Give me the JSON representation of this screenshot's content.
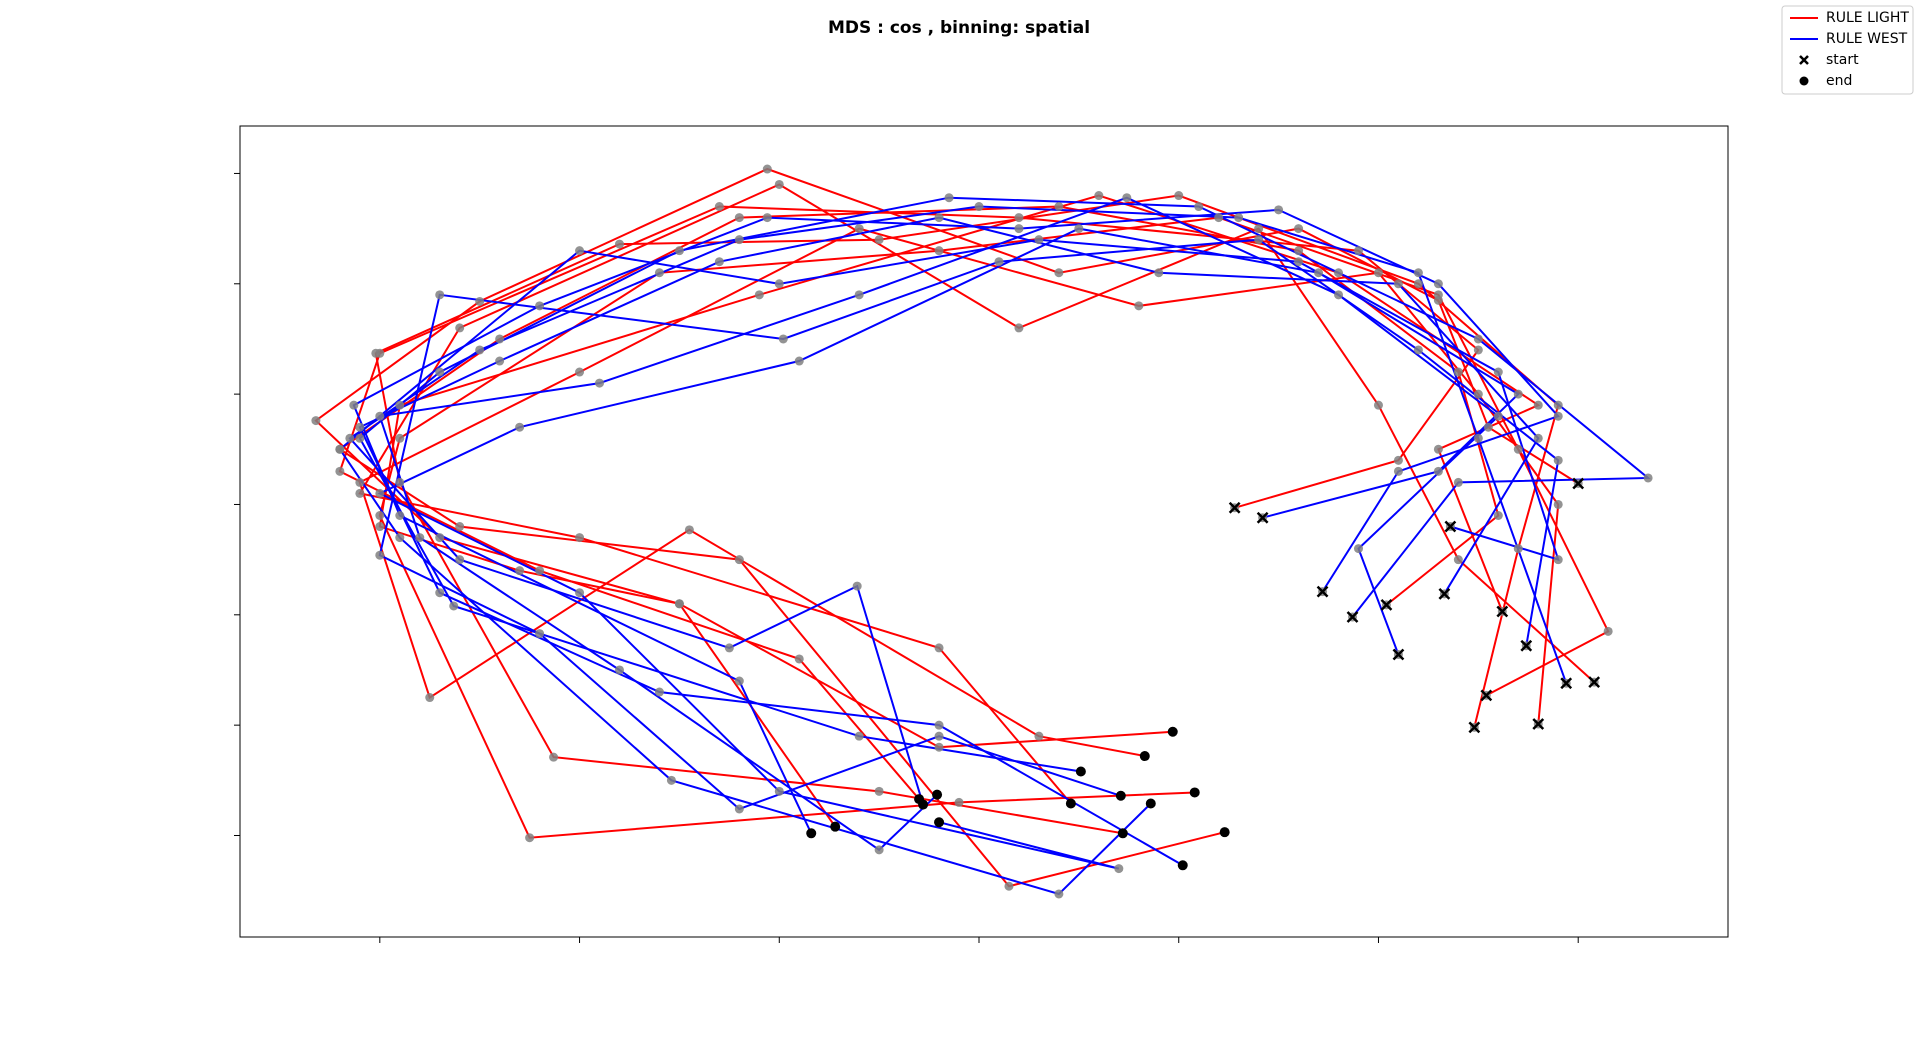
{
  "chart_data": {
    "type": "trajectory",
    "title": "MDS : cos , binning: spatial",
    "xlim": [
      -3.7,
      3.75
    ],
    "ylim": [
      -3.92,
      3.43
    ],
    "xticks": [
      -3,
      -2,
      -1,
      0,
      1,
      2,
      3
    ],
    "yticks": [
      -3,
      -2,
      -1,
      0,
      1,
      2,
      3
    ],
    "legend": "upper right",
    "point_color": "#808080",
    "series": [
      {
        "name": "RULE LIGHT",
        "color": "#ff0000",
        "trajectories": [
          {
            "x": [
              3.0,
              2.55,
              2.3,
              1.6,
              0.4,
              -1.06,
              -2.5,
              -3.32,
              -2.7,
              -1.5,
              -0.2,
              0.97
            ],
            "y": [
              0.19,
              0.7,
              1.85,
              2.5,
              2.1,
              3.04,
              1.84,
              0.76,
              -0.3,
              -0.9,
              -2.2,
              -2.06
            ]
          },
          {
            "x": [
              1.28,
              2.1,
              2.5,
              1.9,
              0.2,
              -1.3,
              -3.0,
              -3.2,
              -2.2,
              -0.9,
              -0.3
            ],
            "y": [
              -0.03,
              0.4,
              1.4,
              2.3,
              2.6,
              2.7,
              1.37,
              0.3,
              -0.6,
              -1.4,
              -2.67
            ]
          },
          {
            "x": [
              2.48,
              2.7,
              2.9,
              2.2,
              1.0,
              -0.5,
              -1.8,
              -3.02,
              -2.9,
              -2.13,
              -0.5,
              0.72
            ],
            "y": [
              -2.02,
              -0.4,
              0.9,
              2.0,
              2.8,
              2.4,
              2.36,
              1.37,
              0.2,
              -2.29,
              -2.6,
              -2.98
            ]
          },
          {
            "x": [
              3.08,
              2.4,
              2.0,
              1.4,
              0.2,
              -1.0,
              -2.6,
              -3.1,
              -2.0,
              -0.2,
              0.46
            ],
            "y": [
              -1.61,
              -0.5,
              0.9,
              2.5,
              1.6,
              2.9,
              1.6,
              0.1,
              -0.3,
              -1.3,
              -2.71
            ]
          },
          {
            "x": [
              2.54,
              3.15,
              2.7,
              2.3,
              1.2,
              -0.2,
              -1.6,
              -2.9,
              -3.0,
              -2.25,
              -0.1,
              1.08
            ],
            "y": [
              -1.73,
              -1.15,
              0.5,
              1.9,
              2.6,
              2.3,
              2.1,
              0.6,
              -0.1,
              -3.02,
              -2.7,
              -2.61
            ]
          },
          {
            "x": [
              2.04,
              2.6,
              2.4,
              1.6,
              0.4,
              -1.2,
              -2.4,
              -3.2,
              -2.6,
              -1.2,
              0.15,
              1.23
            ],
            "y": [
              -0.91,
              -0.1,
              1.2,
              2.3,
              2.7,
              2.6,
              1.5,
              0.5,
              -0.2,
              -0.5,
              -3.46,
              -2.97
            ]
          },
          {
            "x": [
              2.8,
              2.9,
              2.5,
              2.0,
              0.8,
              -0.6,
              -2.0,
              -3.1,
              -2.75,
              -1.45,
              0.3,
              0.83
            ],
            "y": [
              -1.99,
              0.0,
              1.0,
              2.1,
              1.8,
              2.5,
              1.2,
              0.2,
              -1.75,
              -0.23,
              -2.1,
              -2.28
            ]
          },
          {
            "x": [
              2.62,
              2.3,
              2.8,
              1.8,
              0.6,
              -1.1,
              -2.9,
              -3.0,
              -2.3,
              -1.5,
              -0.72
            ],
            "y": [
              -0.97,
              0.5,
              0.9,
              2.1,
              2.8,
              1.9,
              0.9,
              -0.2,
              -0.6,
              -0.9,
              -2.92
            ]
          }
        ]
      },
      {
        "name": "RULE WEST",
        "color": "#0000ff",
        "trajectories": [
          {
            "x": [
              1.72,
              2.1,
              2.9,
              2.3,
              1.5,
              0.2,
              -1.06,
              -2.2,
              -3.13,
              -2.9,
              -1.2,
              -0.84
            ],
            "y": [
              -0.79,
              0.3,
              0.8,
              2.0,
              2.67,
              2.5,
              2.6,
              1.8,
              0.9,
              -0.1,
              -1.6,
              -2.98
            ]
          },
          {
            "x": [
              1.87,
              2.4,
              3.35,
              2.5,
              1.1,
              -0.15,
              -1.5,
              -2.7,
              -3.1,
              -2.63,
              -0.6,
              0.51
            ],
            "y": [
              -1.02,
              0.2,
              0.24,
              1.5,
              2.7,
              2.78,
              2.3,
              1.2,
              0.6,
              -0.92,
              -2.1,
              -2.42
            ]
          },
          {
            "x": [
              2.1,
              1.9,
              2.6,
              1.8,
              0.74,
              -0.6,
              -1.9,
              -3.0,
              -2.8,
              -1.8,
              -0.5,
              -0.21
            ],
            "y": [
              -1.36,
              -0.4,
              0.8,
              1.9,
              2.78,
              1.9,
              1.1,
              0.8,
              -0.3,
              -1.5,
              -3.13,
              -2.63
            ]
          },
          {
            "x": [
              2.36,
              2.9,
              2.6,
              1.6,
              0.3,
              -1.0,
              -2.0,
              -3.2,
              -2.9,
              -1.54,
              0.4,
              0.86
            ],
            "y": [
              -0.2,
              -0.5,
              1.2,
              2.2,
              2.4,
              2.0,
              2.3,
              0.5,
              -0.3,
              -2.5,
              -3.53,
              -2.71
            ]
          },
          {
            "x": [
              2.74,
              2.9,
              2.2,
              1.4,
              0.1,
              -0.98,
              -2.7,
              -3.0,
              -2.2,
              -1.2,
              -0.2,
              0.71
            ],
            "y": [
              -1.28,
              0.4,
              1.4,
              2.4,
              2.2,
              1.5,
              1.9,
              -0.46,
              -1.17,
              -2.76,
              -2.1,
              -2.64
            ]
          },
          {
            "x": [
              2.33,
              2.8,
              2.1,
              0.9,
              -0.2,
              -1.3,
              -2.4,
              -3.1,
              -2.7,
              -1.6,
              -0.2,
              1.02
            ],
            "y": [
              -0.81,
              0.6,
              2.0,
              2.1,
              2.6,
              2.2,
              1.3,
              0.7,
              -0.8,
              -1.7,
              -2.0,
              -3.27
            ]
          },
          {
            "x": [
              2.94,
              2.5,
              2.2,
              1.3,
              0.0,
              -1.2,
              -2.5,
              -3.15,
              -2.6,
              -1.25,
              -0.61,
              -0.28
            ],
            "y": [
              -1.62,
              0.6,
              2.1,
              2.6,
              2.7,
              2.4,
              1.4,
              0.6,
              -0.5,
              -1.3,
              -0.74,
              -2.72
            ]
          },
          {
            "x": [
              1.42,
              2.3,
              2.7,
              1.7,
              0.5,
              -0.9,
              -2.3,
              -3.0,
              -2.0,
              -1.0,
              0.7,
              -0.2
            ],
            "y": [
              -0.12,
              0.3,
              1.0,
              2.1,
              2.5,
              1.3,
              0.7,
              0.1,
              -0.8,
              -2.6,
              -3.3,
              -2.88
            ]
          }
        ]
      }
    ],
    "markers": [
      {
        "label": "start",
        "marker": "x",
        "color": "#000000"
      },
      {
        "label": "end",
        "marker": "o",
        "color": "#000000"
      }
    ]
  }
}
